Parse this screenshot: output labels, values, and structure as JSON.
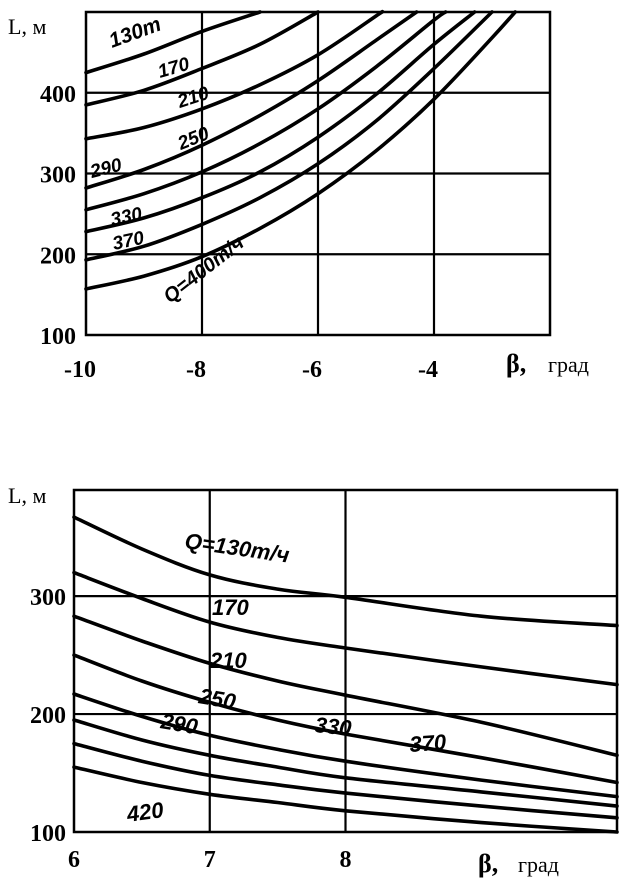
{
  "chart_data": [
    {
      "type": "line",
      "ylabel": "L, м",
      "xlabel_symbol": "β,",
      "xlabel_unit": "град",
      "xlim": [
        -10,
        -2
      ],
      "ylim": [
        100,
        500
      ],
      "x_ticks": [
        "-10",
        "-8",
        "-6",
        "-4"
      ],
      "x_tick_values": [
        -10,
        -8,
        -6,
        -4
      ],
      "y_ticks": [
        "100",
        "200",
        "300",
        "400"
      ],
      "y_tick_values": [
        100,
        200,
        300,
        400
      ],
      "grid": true,
      "series": [
        {
          "name": "130т",
          "points": [
            [
              -10,
              425
            ],
            [
              -9,
              448
            ],
            [
              -8,
              476
            ],
            [
              -7,
              500
            ]
          ]
        },
        {
          "name": "170",
          "points": [
            [
              -10,
              385
            ],
            [
              -9,
              403
            ],
            [
              -8,
              430
            ],
            [
              -7,
              460
            ],
            [
              -6,
              500
            ]
          ]
        },
        {
          "name": "210",
          "points": [
            [
              -10,
              343
            ],
            [
              -9,
              357
            ],
            [
              -8,
              380
            ],
            [
              -7,
              410
            ],
            [
              -6,
              447
            ],
            [
              -5,
              495
            ],
            [
              -4.9,
              500
            ]
          ]
        },
        {
          "name": "250",
          "points": [
            [
              -10,
              282
            ],
            [
              -9,
              305
            ],
            [
              -8,
              335
            ],
            [
              -7,
              372
            ],
            [
              -6,
              415
            ],
            [
              -5,
              465
            ],
            [
              -4.3,
              500
            ]
          ]
        },
        {
          "name": "290",
          "points": [
            [
              -10,
              255
            ],
            [
              -9,
              275
            ],
            [
              -8,
              302
            ],
            [
              -7,
              337
            ],
            [
              -6,
              380
            ],
            [
              -5,
              432
            ],
            [
              -4,
              490
            ],
            [
              -3.8,
              500
            ]
          ]
        },
        {
          "name": "330",
          "points": [
            [
              -10,
              228
            ],
            [
              -9,
              245
            ],
            [
              -8,
              270
            ],
            [
              -7,
              302
            ],
            [
              -6,
              345
            ],
            [
              -5,
              398
            ],
            [
              -4,
              460
            ],
            [
              -3.3,
              500
            ]
          ]
        },
        {
          "name": "370",
          "points": [
            [
              -10,
              193
            ],
            [
              -9,
              210
            ],
            [
              -8,
              237
            ],
            [
              -7,
              270
            ],
            [
              -6,
              312
            ],
            [
              -5,
              365
            ],
            [
              -4,
              430
            ],
            [
              -3,
              500
            ]
          ]
        },
        {
          "name": "Q=400т/ч",
          "points": [
            [
              -10,
              157
            ],
            [
              -9,
              173
            ],
            [
              -8,
              197
            ],
            [
              -7,
              232
            ],
            [
              -6,
              275
            ],
            [
              -5,
              328
            ],
            [
              -4,
              392
            ],
            [
              -3,
              468
            ],
            [
              -2.6,
              500
            ]
          ]
        }
      ],
      "curve_labels": [
        "130т",
        "170",
        "210",
        "250",
        "290",
        "330",
        "370",
        "Q=400т/ч"
      ]
    },
    {
      "type": "line",
      "ylabel": "L, м",
      "xlabel_symbol": "β,",
      "xlabel_unit": "град",
      "xlim": [
        6,
        10
      ],
      "ylim": [
        100,
        390
      ],
      "x_ticks": [
        "6",
        "7",
        "8"
      ],
      "x_tick_values": [
        6,
        7,
        8
      ],
      "y_ticks": [
        "100",
        "200",
        "300"
      ],
      "y_tick_values": [
        100,
        200,
        300
      ],
      "grid": true,
      "series": [
        {
          "name": "Q=130т/ч",
          "points": [
            [
              6,
              367
            ],
            [
              6.5,
              340
            ],
            [
              7,
              318
            ],
            [
              7.5,
              306
            ],
            [
              8,
              299
            ],
            [
              9,
              283
            ],
            [
              10,
              275
            ]
          ]
        },
        {
          "name": "170",
          "points": [
            [
              6,
              320
            ],
            [
              6.5,
              298
            ],
            [
              7,
              278
            ],
            [
              7.5,
              265
            ],
            [
              8,
              256
            ],
            [
              9,
              240
            ],
            [
              10,
              225
            ]
          ]
        },
        {
          "name": "210",
          "points": [
            [
              6,
              283
            ],
            [
              6.5,
              262
            ],
            [
              7,
              243
            ],
            [
              7.5,
              228
            ],
            [
              8,
              216
            ],
            [
              9,
              193
            ],
            [
              10,
              165
            ]
          ]
        },
        {
          "name": "250",
          "points": [
            [
              6,
              250
            ],
            [
              6.5,
              228
            ],
            [
              7,
              210
            ],
            [
              7.5,
              195
            ],
            [
              8,
              183
            ],
            [
              9,
              163
            ],
            [
              10,
              142
            ]
          ]
        },
        {
          "name": "290",
          "points": [
            [
              6,
              217
            ],
            [
              6.5,
              198
            ],
            [
              7,
              182
            ],
            [
              7.5,
              170
            ],
            [
              8,
              160
            ],
            [
              9,
              144
            ],
            [
              10,
              130
            ]
          ]
        },
        {
          "name": "330",
          "points": [
            [
              6,
              195
            ],
            [
              6.5,
              178
            ],
            [
              7,
              165
            ],
            [
              7.5,
              155
            ],
            [
              8,
              146
            ],
            [
              9,
              134
            ],
            [
              10,
              122
            ]
          ]
        },
        {
          "name": "370",
          "points": [
            [
              6,
              175
            ],
            [
              6.5,
              160
            ],
            [
              7,
              148
            ],
            [
              7.5,
              140
            ],
            [
              8,
              133
            ],
            [
              9,
              122
            ],
            [
              10,
              112
            ]
          ]
        },
        {
          "name": "420",
          "points": [
            [
              6,
              155
            ],
            [
              6.5,
              142
            ],
            [
              7,
              132
            ],
            [
              7.5,
              125
            ],
            [
              8,
              118
            ],
            [
              9,
              108
            ],
            [
              10,
              100
            ]
          ]
        }
      ],
      "curve_labels": [
        "Q=130т/ч",
        "170",
        "210",
        "250",
        "290",
        "330",
        "370",
        "420"
      ]
    }
  ]
}
